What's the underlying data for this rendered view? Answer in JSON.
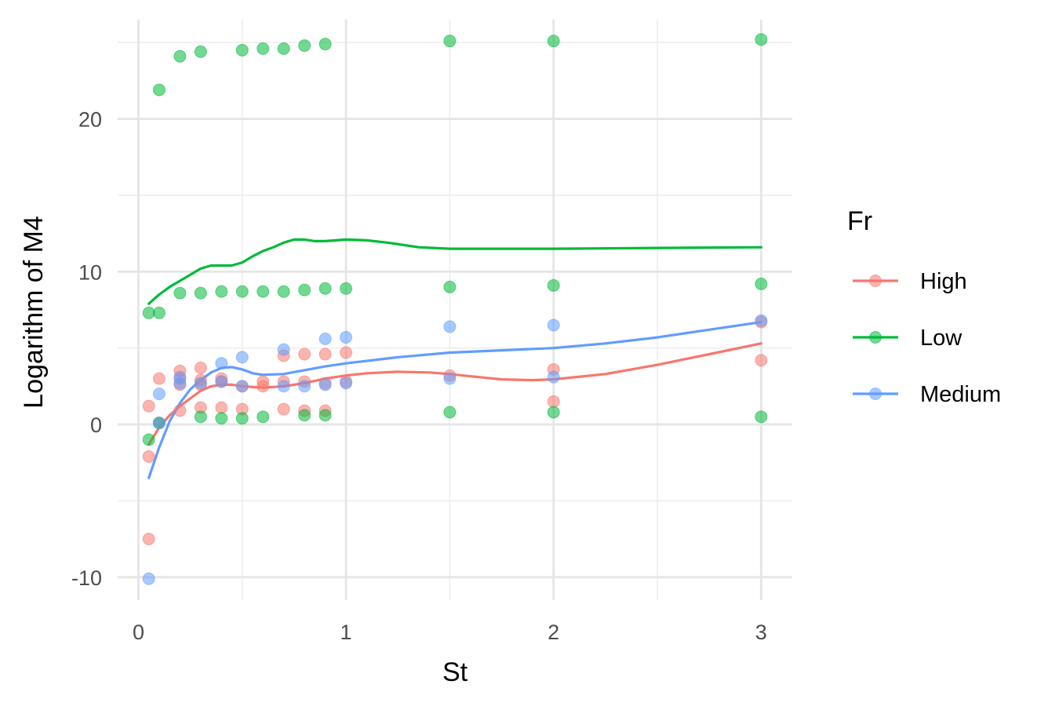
{
  "chart_data": {
    "type": "scatter",
    "xlabel": "St",
    "ylabel": "Logarithm of M4",
    "xlim": [
      -0.1,
      3.15
    ],
    "ylim": [
      -11.5,
      26.5
    ],
    "x_ticks": [
      0,
      1,
      2,
      3
    ],
    "x_tick_labels": [
      "0",
      "1",
      "2",
      "3"
    ],
    "x_minor_ticks": [
      0.5,
      1.5,
      2.5
    ],
    "y_ticks": [
      -10,
      0,
      10,
      20
    ],
    "y_tick_labels": [
      "-10",
      "0",
      "10",
      "20"
    ],
    "y_minor_ticks": [
      -5,
      5,
      15,
      25
    ],
    "grid": true,
    "legend": {
      "title": "Fr",
      "position": "right",
      "entries": [
        "High",
        "Low",
        "Medium"
      ]
    },
    "series": [
      {
        "name": "High",
        "color": "#F8766D",
        "points": [
          [
            0.05,
            1.2
          ],
          [
            0.05,
            -2.1
          ],
          [
            0.05,
            -7.5
          ],
          [
            0.1,
            3.0
          ],
          [
            0.1,
            0.1
          ],
          [
            0.2,
            3.5
          ],
          [
            0.2,
            3.0
          ],
          [
            0.2,
            2.6
          ],
          [
            0.2,
            0.9
          ],
          [
            0.3,
            3.7
          ],
          [
            0.3,
            2.9
          ],
          [
            0.3,
            2.6
          ],
          [
            0.3,
            1.1
          ],
          [
            0.4,
            3.0
          ],
          [
            0.4,
            2.8
          ],
          [
            0.4,
            1.1
          ],
          [
            0.5,
            2.5
          ],
          [
            0.5,
            1.0
          ],
          [
            0.6,
            2.8
          ],
          [
            0.6,
            2.5
          ],
          [
            0.7,
            4.5
          ],
          [
            0.7,
            2.8
          ],
          [
            0.7,
            1.0
          ],
          [
            0.8,
            4.6
          ],
          [
            0.8,
            2.8
          ],
          [
            0.8,
            0.9
          ],
          [
            0.9,
            4.6
          ],
          [
            0.9,
            2.7
          ],
          [
            0.9,
            0.9
          ],
          [
            1.0,
            4.7
          ],
          [
            1.0,
            2.8
          ],
          [
            1.5,
            3.2
          ],
          [
            2.0,
            3.6
          ],
          [
            2.0,
            1.5
          ],
          [
            3.0,
            6.7
          ],
          [
            3.0,
            4.2
          ]
        ],
        "smooth": [
          [
            0.05,
            -1.3
          ],
          [
            0.1,
            -0.2
          ],
          [
            0.15,
            0.6
          ],
          [
            0.2,
            1.2
          ],
          [
            0.25,
            1.7
          ],
          [
            0.3,
            2.2
          ],
          [
            0.35,
            2.5
          ],
          [
            0.4,
            2.6
          ],
          [
            0.45,
            2.6
          ],
          [
            0.5,
            2.5
          ],
          [
            0.6,
            2.4
          ],
          [
            0.7,
            2.5
          ],
          [
            0.8,
            2.7
          ],
          [
            0.9,
            3.0
          ],
          [
            1.0,
            3.2
          ],
          [
            1.1,
            3.35
          ],
          [
            1.25,
            3.45
          ],
          [
            1.4,
            3.4
          ],
          [
            1.5,
            3.3
          ],
          [
            1.6,
            3.15
          ],
          [
            1.75,
            2.95
          ],
          [
            1.9,
            2.9
          ],
          [
            2.0,
            2.95
          ],
          [
            2.25,
            3.3
          ],
          [
            2.5,
            3.9
          ],
          [
            2.75,
            4.6
          ],
          [
            3.0,
            5.3
          ]
        ]
      },
      {
        "name": "Low",
        "color": "#00BA38",
        "points": [
          [
            0.05,
            7.3
          ],
          [
            0.05,
            -1.0
          ],
          [
            0.1,
            21.9
          ],
          [
            0.1,
            7.3
          ],
          [
            0.1,
            0.1
          ],
          [
            0.2,
            24.1
          ],
          [
            0.2,
            8.6
          ],
          [
            0.3,
            24.4
          ],
          [
            0.3,
            8.6
          ],
          [
            0.3,
            0.5
          ],
          [
            0.4,
            8.7
          ],
          [
            0.4,
            0.4
          ],
          [
            0.5,
            24.5
          ],
          [
            0.5,
            8.7
          ],
          [
            0.5,
            0.4
          ],
          [
            0.6,
            24.6
          ],
          [
            0.6,
            8.7
          ],
          [
            0.6,
            0.5
          ],
          [
            0.7,
            24.6
          ],
          [
            0.7,
            8.7
          ],
          [
            0.8,
            24.8
          ],
          [
            0.8,
            8.8
          ],
          [
            0.8,
            0.6
          ],
          [
            0.9,
            24.9
          ],
          [
            0.9,
            8.9
          ],
          [
            0.9,
            0.6
          ],
          [
            1.0,
            8.9
          ],
          [
            1.5,
            25.1
          ],
          [
            1.5,
            9.0
          ],
          [
            1.5,
            0.8
          ],
          [
            2.0,
            25.1
          ],
          [
            2.0,
            9.1
          ],
          [
            2.0,
            0.8
          ],
          [
            3.0,
            25.2
          ],
          [
            3.0,
            9.2
          ],
          [
            3.0,
            0.5
          ]
        ],
        "smooth": [
          [
            0.05,
            7.9
          ],
          [
            0.1,
            8.5
          ],
          [
            0.15,
            9.0
          ],
          [
            0.2,
            9.4
          ],
          [
            0.25,
            9.8
          ],
          [
            0.3,
            10.2
          ],
          [
            0.35,
            10.4
          ],
          [
            0.4,
            10.4
          ],
          [
            0.45,
            10.4
          ],
          [
            0.5,
            10.6
          ],
          [
            0.55,
            11.0
          ],
          [
            0.6,
            11.35
          ],
          [
            0.65,
            11.6
          ],
          [
            0.7,
            11.9
          ],
          [
            0.75,
            12.1
          ],
          [
            0.8,
            12.1
          ],
          [
            0.85,
            12.0
          ],
          [
            0.9,
            12.0
          ],
          [
            1.0,
            12.1
          ],
          [
            1.1,
            12.05
          ],
          [
            1.2,
            11.9
          ],
          [
            1.35,
            11.6
          ],
          [
            1.5,
            11.5
          ],
          [
            1.75,
            11.5
          ],
          [
            2.0,
            11.5
          ],
          [
            2.5,
            11.55
          ],
          [
            3.0,
            11.6
          ]
        ]
      },
      {
        "name": "Medium",
        "color": "#619CFF",
        "points": [
          [
            0.05,
            -10.1
          ],
          [
            0.1,
            2.0
          ],
          [
            0.1,
            0.1
          ],
          [
            0.2,
            3.1
          ],
          [
            0.2,
            2.7
          ],
          [
            0.3,
            2.7
          ],
          [
            0.4,
            4.0
          ],
          [
            0.4,
            2.8
          ],
          [
            0.5,
            4.4
          ],
          [
            0.5,
            2.5
          ],
          [
            0.7,
            4.9
          ],
          [
            0.7,
            2.5
          ],
          [
            0.8,
            2.5
          ],
          [
            0.9,
            5.6
          ],
          [
            0.9,
            2.6
          ],
          [
            1.0,
            5.7
          ],
          [
            1.0,
            2.7
          ],
          [
            1.5,
            6.4
          ],
          [
            1.5,
            3.0
          ],
          [
            2.0,
            6.5
          ],
          [
            2.0,
            3.1
          ],
          [
            3.0,
            6.8
          ]
        ],
        "smooth": [
          [
            0.05,
            -3.5
          ],
          [
            0.1,
            -1.5
          ],
          [
            0.15,
            0.2
          ],
          [
            0.2,
            1.4
          ],
          [
            0.25,
            2.3
          ],
          [
            0.3,
            2.9
          ],
          [
            0.35,
            3.4
          ],
          [
            0.4,
            3.7
          ],
          [
            0.45,
            3.75
          ],
          [
            0.5,
            3.6
          ],
          [
            0.55,
            3.35
          ],
          [
            0.6,
            3.25
          ],
          [
            0.7,
            3.3
          ],
          [
            0.8,
            3.55
          ],
          [
            0.9,
            3.8
          ],
          [
            1.0,
            4.0
          ],
          [
            1.25,
            4.4
          ],
          [
            1.5,
            4.7
          ],
          [
            1.75,
            4.85
          ],
          [
            2.0,
            5.0
          ],
          [
            2.25,
            5.3
          ],
          [
            2.5,
            5.7
          ],
          [
            2.75,
            6.2
          ],
          [
            3.0,
            6.7
          ]
        ]
      }
    ]
  }
}
